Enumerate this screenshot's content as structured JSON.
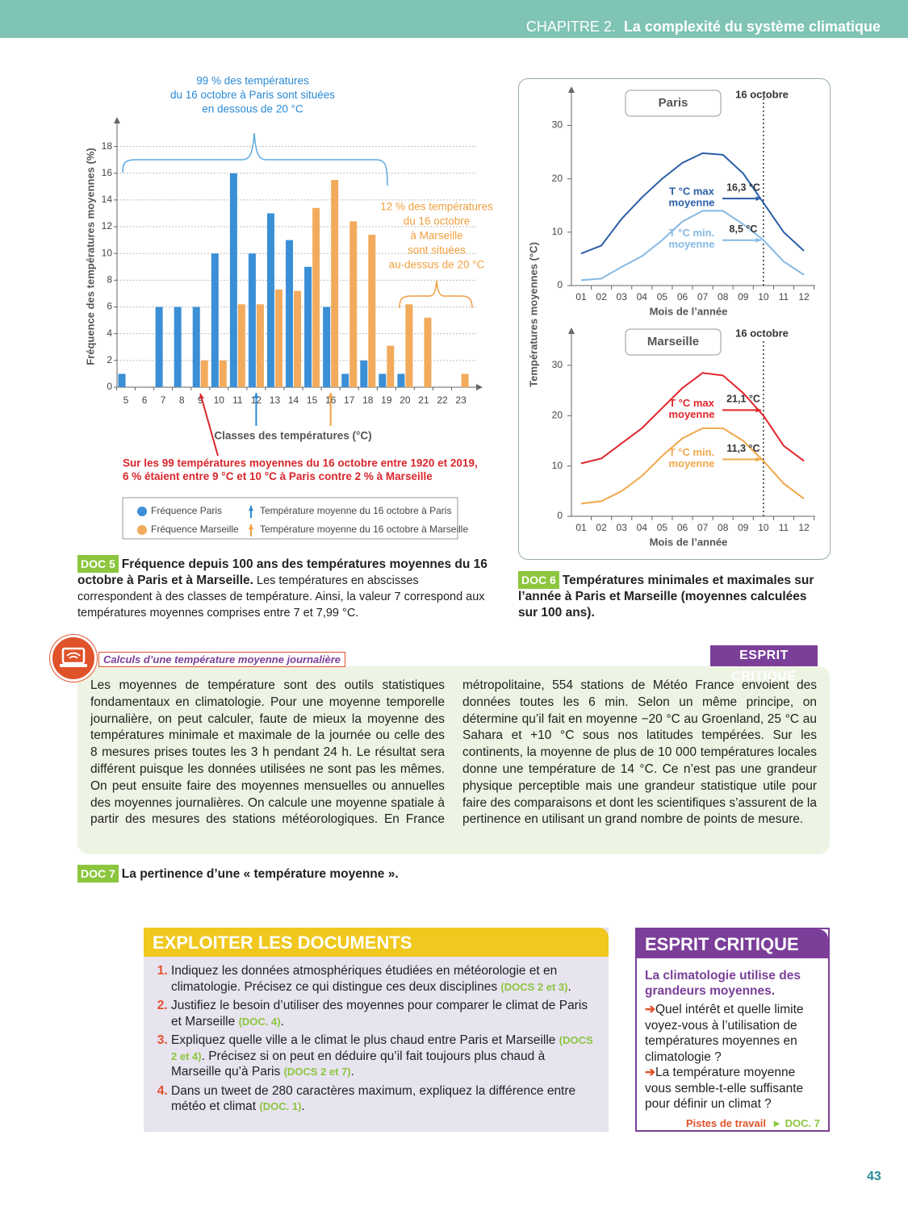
{
  "header": {
    "chapter": "CHAPITRE 2.",
    "title": "La complexité du système climatique"
  },
  "chart_data": [
    {
      "type": "bar",
      "categories": [
        5,
        6,
        7,
        8,
        9,
        10,
        11,
        12,
        13,
        14,
        15,
        16,
        17,
        18,
        19,
        20,
        21,
        22,
        23
      ],
      "series": [
        {
          "name": "Fréquence Paris",
          "color": "#3a8fd6",
          "values": [
            1,
            0,
            6,
            6,
            6,
            10,
            16,
            10,
            13,
            11,
            9,
            6,
            1,
            2,
            1,
            1,
            0,
            0,
            0
          ]
        },
        {
          "name": "Fréquence Marseille",
          "color": "#f2ab5c",
          "values": [
            0,
            0,
            0,
            0,
            2,
            2,
            6.2,
            6.2,
            7.3,
            7.2,
            13.4,
            15.5,
            12.4,
            11.4,
            3.1,
            6.2,
            5.2,
            0,
            1
          ]
        }
      ],
      "ylim": [
        0,
        19
      ],
      "yticks": [
        0,
        2,
        4,
        6,
        8,
        10,
        12,
        14,
        16,
        18
      ],
      "grid": true,
      "ylabel": "Fréquence des températures moyennes (%)",
      "xlabel": "Classes des températures (°C)",
      "annotations": [
        {
          "lines": [
            "99 % des températures",
            "du 16 octobre à Paris sont situées",
            "en dessous de 20 °C"
          ],
          "color": "#2a8ad4"
        },
        {
          "lines": [
            "12 % des températures",
            "du 16 octobre",
            "à Marseille",
            "sont situées",
            "au-dessus de 20 °C"
          ],
          "color": "#f0a040"
        },
        {
          "lines": [
            "Sur les 99 températures moyennes du 16 octobre entre 1920 et 2019,",
            "6 % étaient entre 9 °C et 10 °C à Paris contre 2 % à Marseille"
          ],
          "color": "#d9262c",
          "category": 9
        }
      ],
      "mean_markers": [
        {
          "label": "Température moyenne du 16 octobre à Paris",
          "color": "#2a8ad4",
          "category": 12
        },
        {
          "label": "Température moyenne du 16 octobre à Marseille",
          "color": "#f0a040",
          "category": 16
        }
      ]
    },
    {
      "type": "line",
      "title": "Paris",
      "date_label": "16 octobre",
      "categories": [
        "01",
        "02",
        "03",
        "04",
        "05",
        "06",
        "07",
        "08",
        "09",
        "10",
        "11",
        "12"
      ],
      "series": [
        {
          "label_lines": [
            "T °C max",
            "moyenne"
          ],
          "color": "#2a5ea8",
          "values": [
            6,
            7.5,
            12.5,
            16.5,
            20,
            23,
            24.8,
            24.5,
            21,
            15.5,
            10,
            6.5
          ],
          "marker_value": 16.3,
          "marker_label": "16,3 °C"
        },
        {
          "label_lines": [
            "T °C min.",
            "moyenne"
          ],
          "color": "#86b9e4",
          "values": [
            1,
            1.3,
            3.5,
            5.5,
            8.5,
            12,
            14,
            14,
            11.5,
            8.5,
            4.5,
            2
          ],
          "marker_value": 8.5,
          "marker_label": "8,5 °C"
        }
      ],
      "ylim": [
        0,
        34
      ],
      "yticks": [
        0,
        10,
        20,
        30
      ],
      "xlabel": "Mois de l’année",
      "ylabel": "Températures moyennes (°C)"
    },
    {
      "type": "line",
      "title": "Marseille",
      "date_label": "16 octobre",
      "categories": [
        "01",
        "02",
        "03",
        "04",
        "05",
        "06",
        "07",
        "08",
        "09",
        "10",
        "11",
        "12"
      ],
      "series": [
        {
          "label_lines": [
            "T °C max",
            "moyenne"
          ],
          "color": "#e0262b",
          "values": [
            10.5,
            11.5,
            14.5,
            17.5,
            21.5,
            25.5,
            28.5,
            28,
            24.5,
            20,
            14,
            11
          ],
          "marker_value": 21.1,
          "marker_label": "21,1 °C"
        },
        {
          "label_lines": [
            "T °C min.",
            "moyenne"
          ],
          "color": "#f0a84a",
          "values": [
            2.5,
            3,
            5,
            8,
            12,
            15.5,
            17.5,
            17.5,
            15,
            11,
            6.5,
            3.5
          ],
          "marker_value": 11.3,
          "marker_label": "11,3 °C"
        }
      ],
      "ylim": [
        0,
        34
      ],
      "yticks": [
        0,
        10,
        20,
        30
      ],
      "xlabel": "Mois de l’année"
    }
  ],
  "doc5": {
    "badge": "DOC 5",
    "title": "Fréquence depuis 100 ans des températures moyennes du 16 octobre à Paris et à Marseille.",
    "text": "Les températures en abscisses correspondent à des classes de température. Ainsi, la valeur 7 correspond aux températures moyennes comprises entre 7 et 7,99 °C."
  },
  "doc6": {
    "badge": "DOC 6",
    "title": "Températures minimales et maximales sur l’année à Paris et Marseille (moyennes calculées sur 100 ans)."
  },
  "doc7": {
    "box_title": "Calculs d’une température moyenne journalière",
    "badge": "ESPRIT CRITIQUE",
    "body": "Les moyennes de température sont des outils statistiques fondamentaux en climatologie. Pour une moyenne temporelle journalière, on peut calculer, faute de mieux la moyenne des températures minimale et maximale de la journée ou celle des 8 mesures prises toutes les 3 h pendant 24 h. Le résultat sera différent puisque les données utilisées ne sont pas les mêmes. On peut ensuite faire des moyennes mensuelles ou annuelles des moyennes journalières. On calcule une moyenne spatiale à partir des mesures des stations météorologiques. En France métropolitaine, 554 stations de Météo France envoient des données toutes les 6 min. Selon un même principe, on détermine qu’il fait en moyenne −20 °C au Groenland, 25 °C au Sahara et +10 °C sous nos latitudes tempérées. Sur les continents, la moyenne de plus de 10 000 températures locales donne une température de 14 °C. Ce n’est pas une grandeur physique perceptible mais une grandeur statistique utile pour faire des comparaisons et dont les scientifiques s’assurent de la pertinence en utilisant un grand nombre de points de mesure.",
    "caption_badge": "DOC 7",
    "caption": "La pertinence d’une « température moyenne »."
  },
  "exercises": {
    "title": "EXPLOITER LES DOCUMENTS",
    "items": [
      [
        {
          "text": "Indiquez les données atmosphériques étudiées en météorologie et en climatologie. Précisez ce qui distingue ces deux disciplines "
        },
        {
          "text": "(DOCS 2 et 3)",
          "style": "ref"
        },
        {
          "text": "."
        }
      ],
      [
        {
          "text": "Justifiez le besoin d’utiliser des moyennes pour comparer le climat de Paris et Marseille "
        },
        {
          "text": "(DOC. 4)",
          "style": "ref"
        },
        {
          "text": "."
        }
      ],
      [
        {
          "text": "Expliquez quelle ville a le climat le plus chaud entre Paris et Marseille "
        },
        {
          "text": "(DOCS 2 et 4)",
          "style": "ref"
        },
        {
          "text": ". Précisez si on peut en déduire qu’il fait toujours plus chaud à Marseille qu’à Paris "
        },
        {
          "text": "(DOCS 2 et 7)",
          "style": "ref"
        },
        {
          "text": "."
        }
      ],
      [
        {
          "text": "Dans un tweet de 280 caractères maximum, expliquez la différence entre météo et climat "
        },
        {
          "text": "(DOC. 1)",
          "style": "ref"
        },
        {
          "text": "."
        }
      ]
    ]
  },
  "esprit_critique": {
    "title": "ESPRIT CRITIQUE",
    "subtitle": "La climatologie utilise des grandeurs moyennes.",
    "questions": [
      "Quel intérêt et quelle limite voyez-vous à l’utilisation de températures moyennes en climatologie ?",
      "La température moyenne vous semble-t-elle suffisante pour définir un climat ?"
    ],
    "footer": "Pistes de travail",
    "footer_ref": "► DOC. 7"
  },
  "page_number": "43"
}
